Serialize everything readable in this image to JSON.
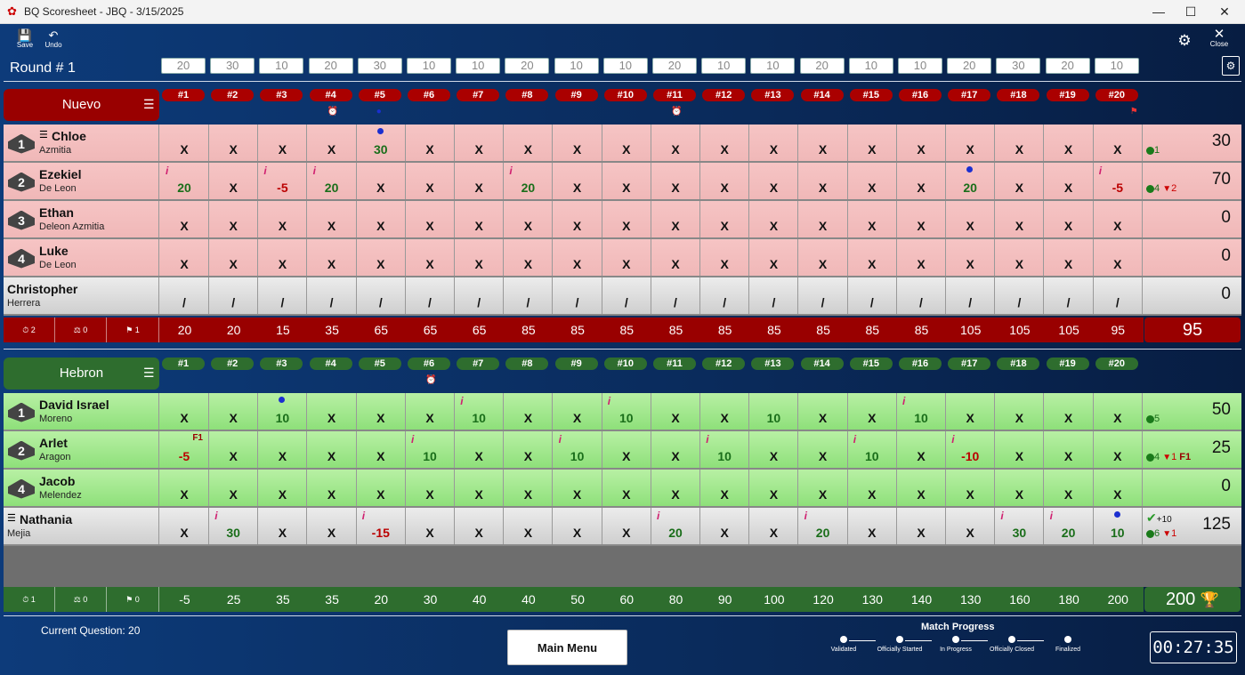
{
  "window": {
    "title": "BQ Scoresheet - JBQ - 3/15/2025",
    "app_icon": "bq-logo-icon",
    "minimize": "—",
    "maximize": "☐",
    "close": "✕"
  },
  "toolbar": {
    "save_label": "Save",
    "undo_label": "Undo",
    "settings_icon": "gear-icon",
    "close_label": "Close",
    "roster_icon": "roster-settings-icon"
  },
  "round_label": "Round # 1",
  "question_values": [
    "20",
    "30",
    "10",
    "20",
    "30",
    "10",
    "10",
    "20",
    "10",
    "10",
    "20",
    "10",
    "10",
    "20",
    "10",
    "10",
    "20",
    "30",
    "20",
    "10"
  ],
  "question_numbers": [
    "#1",
    "#2",
    "#3",
    "#4",
    "#5",
    "#6",
    "#7",
    "#8",
    "#9",
    "#10",
    "#11",
    "#12",
    "#13",
    "#14",
    "#15",
    "#16",
    "#17",
    "#18",
    "#19",
    "#20"
  ],
  "team1": {
    "name": "Nuevo",
    "color": "#990000",
    "row_color": "#f6c4c4",
    "markers": {
      "q4": "timeout-icon",
      "q5": "dot",
      "q11": "timeout-icon",
      "q20": "flag-icon"
    },
    "players": [
      {
        "seat": "1",
        "first": "Chloe",
        "last": "Azmitia",
        "captain": true,
        "cells": [
          "X",
          "X",
          "X",
          "X",
          "30",
          "X",
          "X",
          "X",
          "X",
          "X",
          "X",
          "X",
          "X",
          "X",
          "X",
          "X",
          "X",
          "X",
          "X",
          "X"
        ],
        "info": [],
        "dots": [
          4
        ],
        "fouls": {},
        "score": "30",
        "correct": "1",
        "errors": "",
        "foul_count": ""
      },
      {
        "seat": "2",
        "first": "Ezekiel",
        "last": "De Leon",
        "captain": false,
        "cells": [
          "20",
          "X",
          "-5",
          "20",
          "X",
          "X",
          "X",
          "20",
          "X",
          "X",
          "X",
          "X",
          "X",
          "X",
          "X",
          "X",
          "20",
          "X",
          "X",
          "-5"
        ],
        "info": [
          0,
          2,
          3,
          7,
          19
        ],
        "dots": [
          16
        ],
        "fouls": {},
        "score": "70",
        "correct": "4",
        "errors": "2",
        "foul_count": ""
      },
      {
        "seat": "3",
        "first": "Ethan",
        "last": "Deleon Azmitia",
        "captain": false,
        "cells": [
          "X",
          "X",
          "X",
          "X",
          "X",
          "X",
          "X",
          "X",
          "X",
          "X",
          "X",
          "X",
          "X",
          "X",
          "X",
          "X",
          "X",
          "X",
          "X",
          "X"
        ],
        "info": [],
        "dots": [],
        "fouls": {},
        "score": "0",
        "correct": "",
        "errors": "",
        "foul_count": ""
      },
      {
        "seat": "4",
        "first": "Luke",
        "last": "De Leon",
        "captain": false,
        "cells": [
          "X",
          "X",
          "X",
          "X",
          "X",
          "X",
          "X",
          "X",
          "X",
          "X",
          "X",
          "X",
          "X",
          "X",
          "X",
          "X",
          "X",
          "X",
          "X",
          "X"
        ],
        "info": [],
        "dots": [],
        "fouls": {},
        "score": "0",
        "correct": "",
        "errors": "",
        "foul_count": ""
      },
      {
        "seat": "",
        "first": "Christopher",
        "last": "Herrera",
        "captain": false,
        "substitute": true,
        "cells": [
          "/",
          "/",
          "/",
          "/",
          "/",
          "/",
          "/",
          "/",
          "/",
          "/",
          "/",
          "/",
          "/",
          "/",
          "/",
          "/",
          "/",
          "/",
          "/",
          "/"
        ],
        "info": [],
        "dots": [],
        "fouls": {},
        "score": "0",
        "correct": "",
        "errors": "",
        "foul_count": ""
      }
    ],
    "stats": {
      "timeouts": "2",
      "appeals": "0",
      "fouls": "1"
    },
    "running": [
      "20",
      "20",
      "15",
      "35",
      "65",
      "65",
      "65",
      "85",
      "85",
      "85",
      "85",
      "85",
      "85",
      "85",
      "85",
      "85",
      "105",
      "105",
      "105",
      "95"
    ],
    "total": "95"
  },
  "team2": {
    "name": "Hebron",
    "color": "#2e6d2e",
    "row_color": "#b8f0a4",
    "markers": {
      "q6": "timeout-icon"
    },
    "players": [
      {
        "seat": "1",
        "first": "David Israel",
        "last": "Moreno",
        "captain": false,
        "cells": [
          "X",
          "X",
          "10",
          "X",
          "X",
          "X",
          "10",
          "X",
          "X",
          "10",
          "X",
          "X",
          "10",
          "X",
          "X",
          "10",
          "X",
          "X",
          "X",
          "X"
        ],
        "info": [
          6,
          9,
          15
        ],
        "dots": [
          2
        ],
        "fouls": {},
        "score": "50",
        "correct": "5",
        "errors": "",
        "foul_count": ""
      },
      {
        "seat": "2",
        "first": "Arlet",
        "last": "Aragon",
        "captain": false,
        "cells": [
          "-5",
          "X",
          "X",
          "X",
          "X",
          "10",
          "X",
          "X",
          "10",
          "X",
          "X",
          "10",
          "X",
          "X",
          "10",
          "X",
          "-10",
          "X",
          "X",
          "X"
        ],
        "info": [
          5,
          8,
          11,
          14,
          16
        ],
        "dots": [],
        "fouls": {
          "0": "F1"
        },
        "score": "25",
        "correct": "4",
        "errors": "1",
        "foul_count": "F1"
      },
      {
        "seat": "4",
        "first": "Jacob",
        "last": "Melendez",
        "captain": false,
        "cells": [
          "X",
          "X",
          "X",
          "X",
          "X",
          "X",
          "X",
          "X",
          "X",
          "X",
          "X",
          "X",
          "X",
          "X",
          "X",
          "X",
          "X",
          "X",
          "X",
          "X"
        ],
        "info": [],
        "dots": [],
        "fouls": {},
        "score": "0",
        "correct": "",
        "errors": "",
        "foul_count": ""
      },
      {
        "seat": "",
        "first": "Nathania",
        "last": "Mejia",
        "captain": true,
        "substitute": true,
        "cells": [
          "X",
          "30",
          "X",
          "X",
          "-15",
          "X",
          "X",
          "X",
          "X",
          "X",
          "20",
          "X",
          "X",
          "20",
          "X",
          "X",
          "X",
          "30",
          "20",
          "10"
        ],
        "info": [
          1,
          4,
          10,
          13,
          17,
          18
        ],
        "dots": [
          19
        ],
        "fouls": {},
        "score": "125",
        "correct": "6",
        "errors": "1",
        "foul_count": "",
        "bonus": "+10"
      }
    ],
    "stats": {
      "timeouts": "1",
      "appeals": "0",
      "fouls": "0"
    },
    "running": [
      "-5",
      "25",
      "35",
      "35",
      "20",
      "30",
      "40",
      "40",
      "50",
      "60",
      "80",
      "90",
      "100",
      "120",
      "130",
      "140",
      "130",
      "160",
      "180",
      "200"
    ],
    "total": "200",
    "trophy_icon": "trophy-icon"
  },
  "footer": {
    "current_question": "Current Question: 20",
    "main_menu": "Main Menu",
    "progress_title": "Match Progress",
    "progress_steps": [
      "Validated",
      "Officially Started",
      "In Progress",
      "Officially Closed",
      "Finalized"
    ],
    "clock": "00:27:35"
  }
}
